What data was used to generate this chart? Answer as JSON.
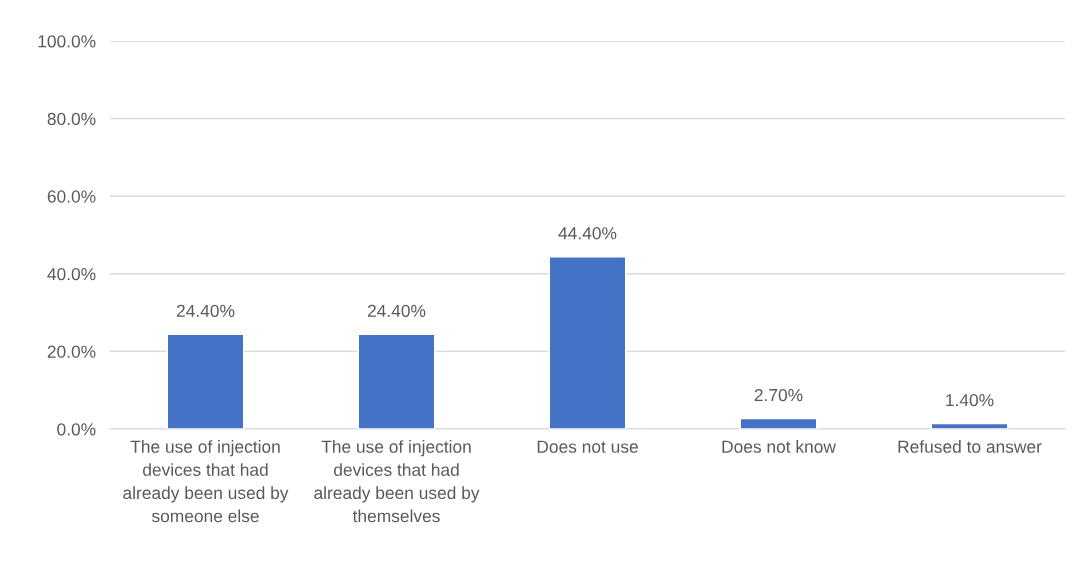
{
  "chart_data": {
    "type": "bar",
    "categories": [
      "The use of injection devices that had already been used by someone else",
      "The use of injection devices that had already been used by themselves",
      "Does not use",
      "Does not know",
      "Refused to answer"
    ],
    "values": [
      24.4,
      24.4,
      44.4,
      2.7,
      1.4
    ],
    "value_labels": [
      "24.40%",
      "24.40%",
      "44.40%",
      "2.70%",
      "1.40%"
    ],
    "color": "#4472c4",
    "ylim": [
      0,
      100
    ],
    "yticks": [
      {
        "value": 0,
        "label": "0.0%"
      },
      {
        "value": 20,
        "label": "20.0%"
      },
      {
        "value": 40,
        "label": "40.0%"
      },
      {
        "value": 60,
        "label": "60.0%"
      },
      {
        "value": 80,
        "label": "80.0%"
      },
      {
        "value": 100,
        "label": "100.0%"
      }
    ],
    "grid": "y"
  }
}
